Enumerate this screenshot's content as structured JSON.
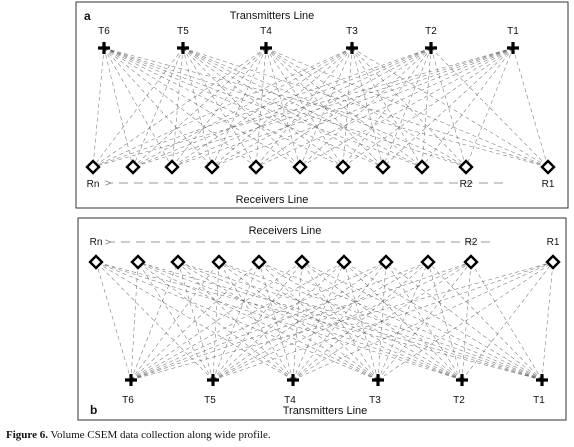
{
  "panel_a": {
    "letter": "a",
    "top_line_title": "Transmitters Line",
    "bottom_line_title": "Receivers Line",
    "transmitters": [
      "T6",
      "T5",
      "T4",
      "T3",
      "T2",
      "T1"
    ],
    "receivers": [
      "Rn",
      "",
      "",
      "",
      "",
      "",
      "",
      "",
      "",
      "R2",
      "R1"
    ]
  },
  "panel_b": {
    "letter": "b",
    "top_line_title": "Receivers Line",
    "bottom_line_title": "Transmitters Line",
    "transmitters": [
      "T6",
      "T5",
      "T4",
      "T3",
      "T2",
      "T1"
    ],
    "receivers": [
      "Rn",
      "",
      "",
      "",
      "",
      "",
      "",
      "",
      "",
      "R2",
      "R1"
    ]
  },
  "caption": {
    "label": "Figure 6.",
    "text": " Volume CSEM data collection along wide profile."
  },
  "symbols": {
    "transmitter": "plus-icon",
    "receiver": "diamond-icon"
  },
  "colors": {
    "rays": "#555555",
    "symbols": "#000000",
    "frame": "#333333"
  }
}
